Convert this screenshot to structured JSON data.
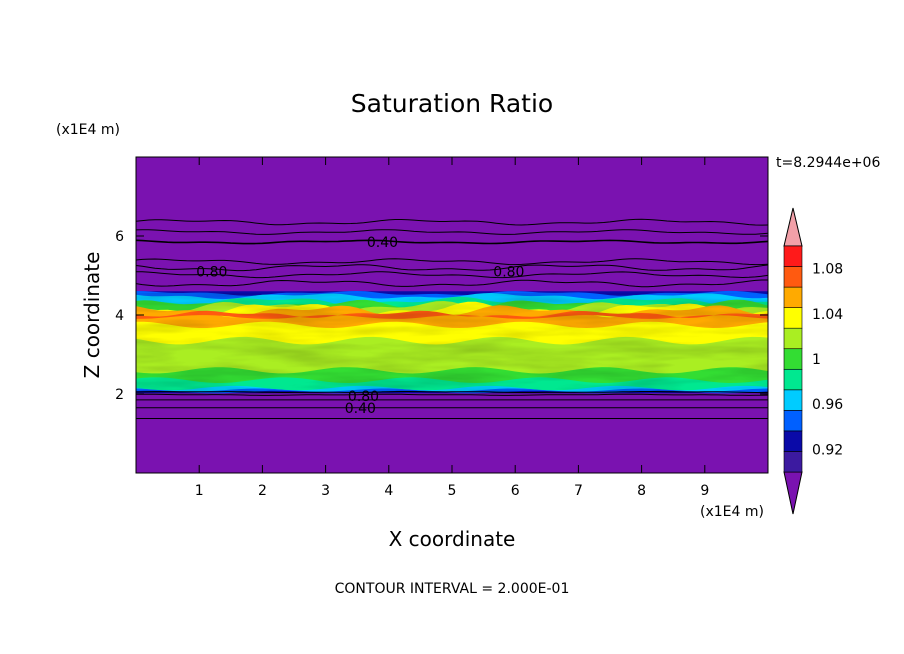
{
  "chart_data": {
    "type": "heatmap",
    "title": "Saturation Ratio",
    "xlabel": "X coordinate",
    "ylabel": "Z coordinate",
    "x_unit": "(x1E4 m)",
    "y_unit": "(x1E4 m)",
    "time_label": "t=8.2944e+06",
    "footer": "CONTOUR INTERVAL = 2.000E-01",
    "xlim": [
      0,
      10
    ],
    "ylim": [
      0,
      8
    ],
    "x_ticks": [
      1,
      2,
      3,
      4,
      5,
      6,
      7,
      8,
      9
    ],
    "y_ticks": [
      2,
      4,
      6
    ],
    "contour_interval": 0.2,
    "colorbar": {
      "tick_labels": [
        "0.92",
        "0.96",
        "1",
        "1.04",
        "1.08"
      ],
      "levels": [
        0.9,
        0.92,
        0.94,
        0.96,
        0.98,
        1.0,
        1.02,
        1.04,
        1.06,
        1.08,
        1.1
      ],
      "colors": [
        "#3c1aa0",
        "#0a0aa8",
        "#0060ff",
        "#00ccff",
        "#00e890",
        "#33dd33",
        "#aaee22",
        "#ffff00",
        "#ffaa00",
        "#ff5a10",
        "#ff1a1a"
      ],
      "under_color": "#7a12b0",
      "over_color": "#f2a0a8"
    },
    "contour_labels": [
      {
        "text": "0.40",
        "x": 3.9,
        "z": 5.85
      },
      {
        "text": "0.80",
        "x": 1.2,
        "z": 5.1
      },
      {
        "text": "0.80",
        "x": 5.9,
        "z": 5.1
      },
      {
        "text": "0.80",
        "x": 3.6,
        "z": 1.95
      },
      {
        "text": "0.40",
        "x": 3.55,
        "z": 1.65
      }
    ]
  }
}
